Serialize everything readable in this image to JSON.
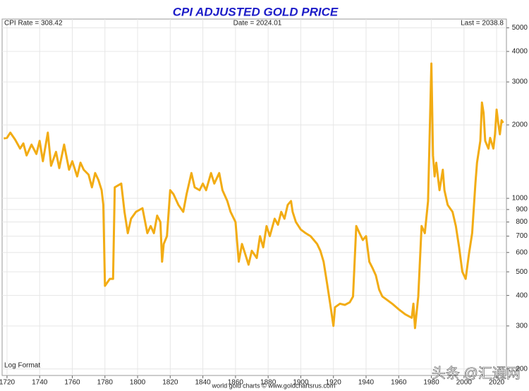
{
  "chart_data": {
    "type": "line",
    "title": "CPI ADJUSTED GOLD PRICE",
    "annotations": {
      "cpi_rate": "CPI Rate = 308.42",
      "date": "Date = 2024.01",
      "last": "Last = 2038.8",
      "log_format": "Log Format",
      "source": "world gold charts © www.goldchartsrus.com",
      "watermark": "头条 @汇通网"
    },
    "log_scale": true,
    "grid": true,
    "xlim": [
      1717,
      2026
    ],
    "xticks": [
      1720,
      1740,
      1760,
      1780,
      1800,
      1820,
      1840,
      1860,
      1880,
      1900,
      1920,
      1940,
      1960,
      1980,
      2000,
      2020
    ],
    "ylim": [
      188,
      5430
    ],
    "yticks": [
      200,
      300,
      400,
      500,
      600,
      700,
      800,
      900,
      1000,
      2000,
      3000,
      4000,
      5000
    ],
    "series": [
      {
        "name": "CPI Adjusted Gold Price",
        "color": "#f2ac14",
        "x": [
          1718,
          1720,
          1722,
          1725,
          1728,
          1730,
          1732,
          1735,
          1738,
          1740,
          1742,
          1745,
          1747,
          1750,
          1752,
          1755,
          1758,
          1760,
          1763,
          1765,
          1767,
          1770,
          1772,
          1774,
          1776,
          1778,
          1779,
          1780,
          1783,
          1785,
          1786,
          1790,
          1792,
          1794,
          1796,
          1799,
          1803,
          1806,
          1808,
          1810,
          1812,
          1814,
          1815,
          1816,
          1818,
          1820,
          1822,
          1825,
          1828,
          1830,
          1833,
          1835,
          1838,
          1840,
          1842,
          1845,
          1847,
          1850,
          1852,
          1855,
          1857,
          1860,
          1862,
          1864,
          1866,
          1868,
          1870,
          1873,
          1875,
          1877,
          1879,
          1881,
          1884,
          1886,
          1888,
          1890,
          1892,
          1894,
          1895,
          1897,
          1900,
          1903,
          1906,
          1908,
          1910,
          1912,
          1914,
          1916,
          1918,
          1920,
          1921,
          1924,
          1927,
          1930,
          1932,
          1934,
          1936,
          1938,
          1940,
          1942,
          1944,
          1946,
          1948,
          1950,
          1953,
          1956,
          1960,
          1964,
          1968,
          1969,
          1970,
          1972,
          1974,
          1976,
          1978,
          1980,
          1981,
          1982,
          1983,
          1985,
          1987,
          1988,
          1990,
          1993,
          1995,
          1997,
          1999,
          2001,
          2003,
          2005,
          2007,
          2008,
          2010,
          2011,
          2012,
          2013,
          2015,
          2016,
          2018,
          2019,
          2020,
          2021,
          2022,
          2023,
          2024
        ],
        "values": [
          1760,
          1770,
          1860,
          1740,
          1600,
          1680,
          1500,
          1660,
          1520,
          1720,
          1420,
          1860,
          1360,
          1550,
          1330,
          1660,
          1310,
          1420,
          1230,
          1400,
          1310,
          1250,
          1110,
          1270,
          1190,
          1080,
          940,
          438,
          468,
          468,
          1110,
          1150,
          880,
          720,
          825,
          880,
          911,
          720,
          770,
          720,
          850,
          800,
          550,
          650,
          700,
          1080,
          1040,
          940,
          880,
          1040,
          1270,
          1110,
          1080,
          1150,
          1080,
          1270,
          1150,
          1270,
          1080,
          975,
          880,
          800,
          550,
          650,
          590,
          535,
          610,
          570,
          700,
          630,
          770,
          700,
          825,
          780,
          880,
          825,
          940,
          975,
          880,
          800,
          745,
          720,
          700,
          675,
          650,
          610,
          550,
          452,
          370,
          300,
          358,
          370,
          366,
          375,
          396,
          770,
          720,
          675,
          700,
          550,
          517,
          483,
          423,
          396,
          383,
          370,
          351,
          335,
          324,
          370,
          294,
          396,
          770,
          720,
          975,
          3570,
          1500,
          1230,
          1400,
          1080,
          1310,
          1080,
          940,
          880,
          770,
          630,
          500,
          468,
          590,
          720,
          1150,
          1400,
          1720,
          2470,
          2240,
          1720,
          1600,
          1770,
          1600,
          1830,
          2310,
          2030,
          1830,
          2090,
          2039
        ]
      }
    ]
  }
}
